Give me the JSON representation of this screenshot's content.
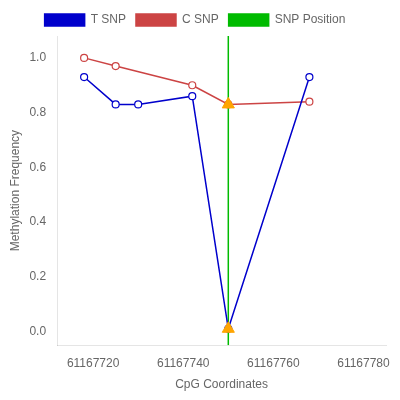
{
  "chart_data": {
    "type": "line",
    "xlabel": "CpG Coordinates",
    "ylabel": "Methylation Frequency",
    "xlim": [
      61167712,
      61167785
    ],
    "ylim": [
      -0.05,
      1.08
    ],
    "xticks": [
      61167720,
      61167740,
      61167760,
      61167780
    ],
    "yticks": [
      {
        "value": 0.0,
        "label": "0.0"
      },
      0.2,
      0.4,
      0.6,
      0.8,
      {
        "value": 1.0,
        "label": "1.0"
      }
    ],
    "grid": false,
    "legend": "top",
    "series": [
      {
        "name": "T SNP",
        "color": "#0000CC",
        "marker": "circle",
        "x": [
          61167718,
          61167725,
          61167730,
          61167742,
          61167750,
          61167768
        ],
        "values": [
          0.93,
          0.83,
          0.83,
          0.86,
          0.01,
          0.93
        ]
      },
      {
        "name": "C SNP",
        "color": "#CC4444",
        "marker": "circle",
        "x": [
          61167718,
          61167725,
          61167742,
          61167750,
          61167768
        ],
        "values": [
          1.0,
          0.97,
          0.9,
          0.83,
          0.84
        ]
      },
      {
        "name": "SNP Position",
        "type": "vline",
        "color": "#00BB00",
        "x": [
          61167750
        ]
      },
      {
        "type": "scatter",
        "marker": "triangle",
        "color": "#FFA500",
        "x": [
          61167750,
          61167750
        ],
        "values": [
          0.01,
          0.83
        ]
      }
    ]
  }
}
